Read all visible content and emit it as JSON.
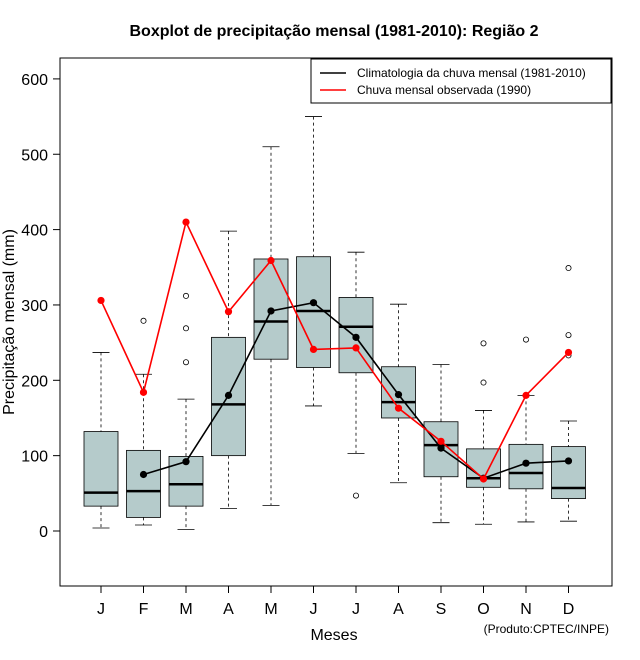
{
  "chart_data": {
    "type": "boxplot",
    "title": "Boxplot de precipitação mensal (1981-2010): Região 2",
    "xlabel": "Meses",
    "ylabel": "Precipitação mensal (mm)",
    "ylim": [
      -75,
      640
    ],
    "yticks": [
      0,
      100,
      200,
      300,
      400,
      500,
      600
    ],
    "categories": [
      "J",
      "F",
      "M",
      "A",
      "M",
      "J",
      "J",
      "A",
      "S",
      "O",
      "N",
      "D"
    ],
    "boxes": [
      {
        "month": "J",
        "whisker_low": 4,
        "q1": 33,
        "median": 51,
        "q3": 132,
        "whisker_high": 237,
        "outliers": []
      },
      {
        "month": "F",
        "whisker_low": 8,
        "q1": 18,
        "median": 53,
        "q3": 107,
        "whisker_high": 208,
        "outliers": [
          279
        ]
      },
      {
        "month": "M",
        "whisker_low": 2,
        "q1": 33,
        "median": 62,
        "q3": 99,
        "whisker_high": 175,
        "outliers": [
          224,
          269,
          312
        ]
      },
      {
        "month": "A",
        "whisker_low": 30,
        "q1": 100,
        "median": 168,
        "q3": 257,
        "whisker_high": 398,
        "outliers": []
      },
      {
        "month": "M",
        "whisker_low": 34,
        "q1": 228,
        "median": 278,
        "q3": 361,
        "whisker_high": 510,
        "outliers": []
      },
      {
        "month": "J",
        "whisker_low": 166,
        "q1": 217,
        "median": 292,
        "q3": 364,
        "whisker_high": 550,
        "outliers": []
      },
      {
        "month": "J",
        "whisker_low": 103,
        "q1": 210,
        "median": 271,
        "q3": 310,
        "whisker_high": 370,
        "outliers": [
          47
        ]
      },
      {
        "month": "A",
        "whisker_low": 64,
        "q1": 150,
        "median": 171,
        "q3": 218,
        "whisker_high": 301,
        "outliers": []
      },
      {
        "month": "S",
        "whisker_low": 11,
        "q1": 72,
        "median": 114,
        "q3": 145,
        "whisker_high": 221,
        "outliers": []
      },
      {
        "month": "O",
        "whisker_low": 9,
        "q1": 58,
        "median": 70,
        "q3": 109,
        "whisker_high": 160,
        "outliers": [
          197,
          249
        ]
      },
      {
        "month": "N",
        "whisker_low": 12,
        "q1": 56,
        "median": 77,
        "q3": 115,
        "whisker_high": 180,
        "outliers": [
          254
        ]
      },
      {
        "month": "D",
        "whisker_low": 13,
        "q1": 43,
        "median": 57,
        "q3": 112,
        "whisker_high": 146,
        "outliers": [
          233,
          260,
          349
        ]
      }
    ],
    "series": [
      {
        "name": "Climatologia da chuva mensal (1981-2010)",
        "color": "#000000",
        "values": [
          null,
          75,
          92,
          180,
          292,
          303,
          257,
          181,
          110,
          70,
          90,
          93
        ]
      },
      {
        "name": "Chuva mensal observada (1990)",
        "color": "#ff0000",
        "values": [
          306,
          184,
          410,
          291,
          359,
          241,
          243,
          163,
          119,
          69,
          180,
          237
        ]
      }
    ],
    "legend": {
      "position": "top-right",
      "entries": [
        "Climatologia da chuva mensal (1981-2010)",
        "Chuva mensal observada (1990)"
      ]
    },
    "box_color": "#b5cbcb",
    "grid": false
  },
  "credit": "(Produto:CPTEC/INPE)"
}
